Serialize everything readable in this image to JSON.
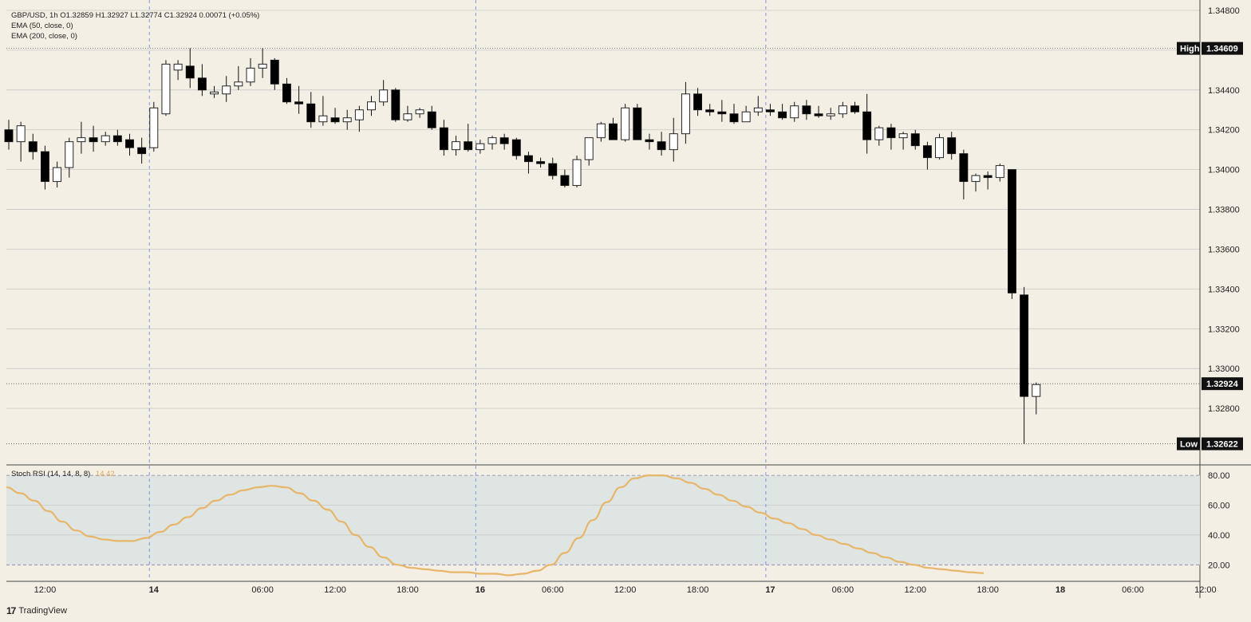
{
  "header": {
    "title_line": "GBP/USD, 1h  O1.32859  H1.32927  L1.32774  C1.32924  0.00071 (+0.05%)",
    "ema1": "EMA (50, close, 0)",
    "ema2": "EMA (200, close, 0)"
  },
  "stoch": {
    "label": "Stoch RSI (14, 14, 8, 8)",
    "value": "14.42",
    "color": "#e8b66a"
  },
  "footer": {
    "logo": "17",
    "brand": "TradingView"
  },
  "colors": {
    "background": "#f4efe4",
    "band": "#dfe5e3",
    "up_candle": "#ffffff",
    "down_candle": "#000000",
    "grid": "#c8c8c8",
    "day_line": "#6c8fe0"
  },
  "chart_data": [
    {
      "type": "candlestick",
      "symbol": "GBP/USD",
      "timeframe": "1h",
      "ylim": [
        1.3252,
        1.3482
      ],
      "yticks": [
        "1.34800",
        "1.34600",
        "1.34400",
        "1.34200",
        "1.34000",
        "1.33800",
        "1.33600",
        "1.33400",
        "1.33200",
        "1.33000",
        "1.32800"
      ],
      "markers": [
        {
          "label": "High",
          "value": "1.34609"
        },
        {
          "label": "Low",
          "value": "1.32622"
        },
        {
          "label": "",
          "value": "1.32924"
        }
      ],
      "xticks": [
        {
          "label": "12:00",
          "bold": false,
          "index": 3
        },
        {
          "label": "14",
          "bold": true,
          "index": 12
        },
        {
          "label": "06:00",
          "bold": false,
          "index": 21
        },
        {
          "label": "12:00",
          "bold": false,
          "index": 27
        },
        {
          "label": "18:00",
          "bold": false,
          "index": 33
        },
        {
          "label": "16",
          "bold": true,
          "index": 39
        },
        {
          "label": "06:00",
          "bold": false,
          "index": 45
        },
        {
          "label": "12:00",
          "bold": false,
          "index": 51
        },
        {
          "label": "18:00",
          "bold": false,
          "index": 57
        },
        {
          "label": "17",
          "bold": true,
          "index": 63
        },
        {
          "label": "06:00",
          "bold": false,
          "index": 69
        },
        {
          "label": "12:00",
          "bold": false,
          "index": 75
        },
        {
          "label": "18:00",
          "bold": false,
          "index": 81
        },
        {
          "label": "18",
          "bold": true,
          "index": 87
        },
        {
          "label": "06:00",
          "bold": false,
          "index": 93
        },
        {
          "label": "12:00",
          "bold": false,
          "index": 99
        }
      ],
      "day_separators": [
        12,
        39,
        63
      ],
      "candles": [
        [
          1.342,
          1.3425,
          1.341,
          1.3414
        ],
        [
          1.3414,
          1.3424,
          1.3404,
          1.3422
        ],
        [
          1.3414,
          1.3418,
          1.3405,
          1.3409
        ],
        [
          1.3409,
          1.3412,
          1.339,
          1.3394
        ],
        [
          1.3394,
          1.3404,
          1.3391,
          1.3401
        ],
        [
          1.3401,
          1.3416,
          1.3396,
          1.3414
        ],
        [
          1.3414,
          1.3424,
          1.3408,
          1.3416
        ],
        [
          1.3416,
          1.3422,
          1.3409,
          1.3414
        ],
        [
          1.3414,
          1.3419,
          1.3412,
          1.3417
        ],
        [
          1.3417,
          1.342,
          1.3412,
          1.3414
        ],
        [
          1.3415,
          1.3418,
          1.3407,
          1.3411
        ],
        [
          1.3411,
          1.3416,
          1.3403,
          1.3408
        ],
        [
          1.3411,
          1.3434,
          1.3409,
          1.3431
        ],
        [
          1.3428,
          1.3455,
          1.3427,
          1.3453
        ],
        [
          1.345,
          1.3455,
          1.3445,
          1.3453
        ],
        [
          1.3452,
          1.3461,
          1.3441,
          1.3446
        ],
        [
          1.3446,
          1.3453,
          1.3437,
          1.344
        ],
        [
          1.3438,
          1.3442,
          1.3436,
          1.3439
        ],
        [
          1.3438,
          1.3447,
          1.3434,
          1.3442
        ],
        [
          1.3442,
          1.3452,
          1.344,
          1.3444
        ],
        [
          1.3444,
          1.3456,
          1.3442,
          1.3451
        ],
        [
          1.3451,
          1.3461,
          1.3446,
          1.3453
        ],
        [
          1.3455,
          1.3456,
          1.344,
          1.3443
        ],
        [
          1.3443,
          1.3446,
          1.3433,
          1.3434
        ],
        [
          1.3434,
          1.3442,
          1.3428,
          1.3433
        ],
        [
          1.3433,
          1.3439,
          1.3421,
          1.3424
        ],
        [
          1.3424,
          1.3437,
          1.3422,
          1.3427
        ],
        [
          1.3426,
          1.3431,
          1.3423,
          1.3424
        ],
        [
          1.3424,
          1.343,
          1.342,
          1.3426
        ],
        [
          1.3425,
          1.3432,
          1.3419,
          1.343
        ],
        [
          1.343,
          1.3437,
          1.3427,
          1.3434
        ],
        [
          1.3434,
          1.3445,
          1.3432,
          1.344
        ],
        [
          1.344,
          1.3441,
          1.3424,
          1.3425
        ],
        [
          1.3425,
          1.3432,
          1.3424,
          1.3428
        ],
        [
          1.3428,
          1.3431,
          1.3426,
          1.343
        ],
        [
          1.3429,
          1.3432,
          1.342,
          1.3421
        ],
        [
          1.3421,
          1.3425,
          1.3407,
          1.341
        ],
        [
          1.341,
          1.3417,
          1.3407,
          1.3414
        ],
        [
          1.3414,
          1.3423,
          1.3409,
          1.341
        ],
        [
          1.341,
          1.3415,
          1.3408,
          1.3413
        ],
        [
          1.3413,
          1.3417,
          1.341,
          1.3416
        ],
        [
          1.3416,
          1.3418,
          1.341,
          1.3413
        ],
        [
          1.3415,
          1.3416,
          1.3405,
          1.3407
        ],
        [
          1.3407,
          1.3409,
          1.3398,
          1.3404
        ],
        [
          1.3404,
          1.3406,
          1.3401,
          1.3403
        ],
        [
          1.3403,
          1.3406,
          1.3395,
          1.3397
        ],
        [
          1.3397,
          1.34,
          1.3391,
          1.3392
        ],
        [
          1.3392,
          1.3407,
          1.3391,
          1.3405
        ],
        [
          1.3405,
          1.3414,
          1.3402,
          1.3416
        ],
        [
          1.3416,
          1.3424,
          1.3414,
          1.3423
        ],
        [
          1.3423,
          1.3426,
          1.3415,
          1.3415
        ],
        [
          1.3415,
          1.3433,
          1.3414,
          1.3431
        ],
        [
          1.3431,
          1.3433,
          1.3415,
          1.3415
        ],
        [
          1.3415,
          1.3418,
          1.341,
          1.3414
        ],
        [
          1.3414,
          1.3419,
          1.3407,
          1.341
        ],
        [
          1.341,
          1.3426,
          1.3404,
          1.3418
        ],
        [
          1.3418,
          1.3444,
          1.3413,
          1.3438
        ],
        [
          1.3438,
          1.3441,
          1.3427,
          1.343
        ],
        [
          1.343,
          1.3433,
          1.3427,
          1.3429
        ],
        [
          1.3429,
          1.3435,
          1.3424,
          1.3428
        ],
        [
          1.3428,
          1.3433,
          1.3423,
          1.3424
        ],
        [
          1.3424,
          1.3432,
          1.3424,
          1.3429
        ],
        [
          1.3429,
          1.3437,
          1.3427,
          1.3431
        ],
        [
          1.343,
          1.3433,
          1.3427,
          1.3429
        ],
        [
          1.3429,
          1.3433,
          1.3425,
          1.3426
        ],
        [
          1.3426,
          1.3434,
          1.3424,
          1.3432
        ],
        [
          1.3432,
          1.3435,
          1.3425,
          1.3428
        ],
        [
          1.3428,
          1.3432,
          1.3426,
          1.3427
        ],
        [
          1.3427,
          1.3431,
          1.3425,
          1.3428
        ],
        [
          1.3428,
          1.3434,
          1.3426,
          1.3432
        ],
        [
          1.3432,
          1.3434,
          1.3428,
          1.3429
        ],
        [
          1.3429,
          1.3438,
          1.3408,
          1.3415
        ],
        [
          1.3415,
          1.3422,
          1.3412,
          1.3421
        ],
        [
          1.3421,
          1.3423,
          1.341,
          1.3416
        ],
        [
          1.3416,
          1.3419,
          1.341,
          1.3418
        ],
        [
          1.3418,
          1.342,
          1.341,
          1.3412
        ],
        [
          1.3412,
          1.3414,
          1.34,
          1.3406
        ],
        [
          1.3406,
          1.3418,
          1.3405,
          1.3416
        ],
        [
          1.3416,
          1.3419,
          1.3405,
          1.3408
        ],
        [
          1.3408,
          1.341,
          1.3385,
          1.3394
        ],
        [
          1.3394,
          1.3398,
          1.3389,
          1.3397
        ],
        [
          1.3397,
          1.3399,
          1.339,
          1.3396
        ],
        [
          1.3396,
          1.3403,
          1.3394,
          1.3402
        ],
        [
          1.34,
          1.34,
          1.3335,
          1.3338
        ],
        [
          1.3337,
          1.3341,
          1.3262,
          1.3286
        ],
        [
          1.3286,
          1.3293,
          1.3277,
          1.3292
        ]
      ]
    },
    {
      "type": "line",
      "name": "Stoch RSI (14, 14, 8, 8)",
      "ylim": [
        10,
        87
      ],
      "yticks": [
        "80.00",
        "60.00",
        "40.00",
        "20.00"
      ],
      "band": [
        20,
        80
      ],
      "values": [
        72,
        68,
        63,
        56,
        49,
        43,
        39,
        37,
        36,
        36,
        38,
        42,
        47,
        52,
        58,
        63,
        67,
        70,
        72,
        73,
        72,
        68,
        63,
        57,
        49,
        40,
        32,
        25,
        20,
        18,
        17,
        16,
        15,
        15,
        14,
        14,
        13,
        14,
        16,
        20,
        28,
        38,
        50,
        62,
        72,
        78,
        80,
        80,
        78,
        75,
        71,
        67,
        63,
        59,
        55,
        51,
        48,
        44,
        40,
        37,
        34,
        31,
        28,
        25,
        22,
        20,
        18,
        17,
        16,
        15,
        14.42
      ]
    }
  ]
}
